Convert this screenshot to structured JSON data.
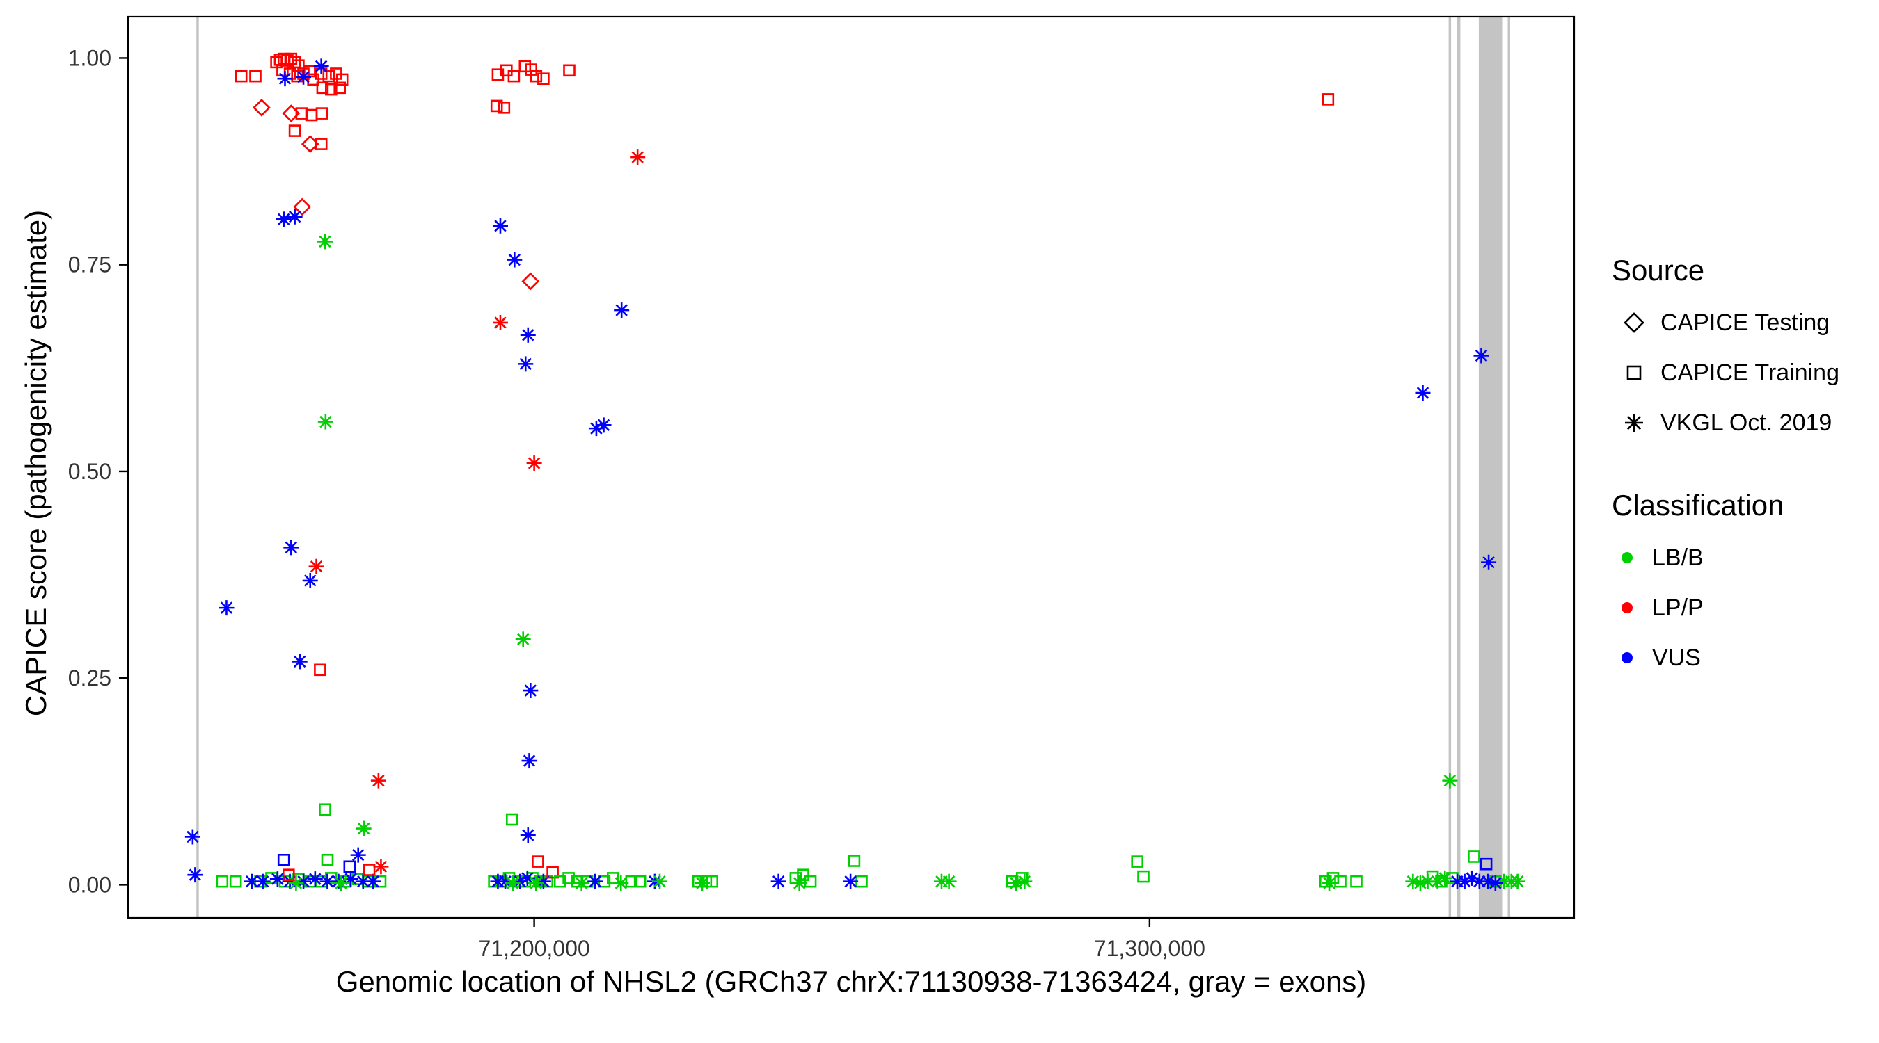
{
  "legend": {
    "source": {
      "title": "Source",
      "items": [
        {
          "shape": "diamond",
          "label": "CAPICE Testing"
        },
        {
          "shape": "square",
          "label": "CAPICE Training"
        },
        {
          "shape": "asterisk",
          "label": "VKGL Oct. 2019"
        }
      ]
    },
    "classification": {
      "title": "Classification",
      "items": [
        {
          "color": "#00d000",
          "label": "LB/B"
        },
        {
          "color": "#ff0000",
          "label": "LP/P"
        },
        {
          "color": "#0000ff",
          "label": "VUS"
        }
      ]
    }
  },
  "chart_data": {
    "type": "scatter",
    "title": "",
    "xlabel": "Genomic location of NHSL2 (GRCh37 chrX:71130938-71363424, gray = exons)",
    "ylabel": "CAPICE score (pathogenicity estimate)",
    "xlim": [
      71134000,
      71369000
    ],
    "ylim": [
      -0.04,
      1.05
    ],
    "grid": false,
    "legend_position": "right",
    "x_ticks": [
      {
        "value": 71200000,
        "label": "71,200,000"
      },
      {
        "value": 71300000,
        "label": "71,300,000"
      }
    ],
    "y_ticks": [
      {
        "value": 0.0,
        "label": "0.00"
      },
      {
        "value": 0.25,
        "label": "0.25"
      },
      {
        "value": 0.5,
        "label": "0.50"
      },
      {
        "value": 0.75,
        "label": "0.75"
      },
      {
        "value": 1.0,
        "label": "1.00"
      }
    ],
    "exon_color": "#c4c4c4",
    "exons": [
      [
        71145100,
        71145500
      ],
      [
        71348600,
        71349000
      ],
      [
        71350000,
        71350500
      ],
      [
        71353500,
        71357300
      ],
      [
        71358200,
        71358600
      ]
    ],
    "class_colors": {
      "B": "#00d000",
      "P": "#ff0000",
      "U": "#0000ff"
    },
    "class_labels": {
      "B": "LB/B",
      "P": "LP/P",
      "U": "VUS"
    },
    "source_labels": {
      "T": "CAPICE Testing",
      "R": "CAPICE Training",
      "V": "VKGL Oct. 2019"
    },
    "source_shapes": {
      "T": "diamond",
      "R": "square",
      "V": "asterisk"
    },
    "point_fields": [
      "position",
      "score",
      "classification",
      "source"
    ],
    "points": [
      [
        71152400,
        0.978,
        "P",
        "R"
      ],
      [
        71154700,
        0.978,
        "P",
        "R"
      ],
      [
        71158100,
        0.995,
        "P",
        "R"
      ],
      [
        71158700,
        0.998,
        "P",
        "R"
      ],
      [
        71159300,
        0.999,
        "P",
        "R"
      ],
      [
        71159900,
        0.997,
        "P",
        "R"
      ],
      [
        71160500,
        0.999,
        "P",
        "R"
      ],
      [
        71161100,
        0.995,
        "P",
        "R"
      ],
      [
        71161700,
        0.991,
        "P",
        "R"
      ],
      [
        71159100,
        0.985,
        "P",
        "R"
      ],
      [
        71160300,
        0.981,
        "P",
        "R"
      ],
      [
        71161500,
        0.978,
        "P",
        "R"
      ],
      [
        71162500,
        0.981,
        "P",
        "R"
      ],
      [
        71163500,
        0.984,
        "P",
        "R"
      ],
      [
        71164100,
        0.974,
        "P",
        "R"
      ],
      [
        71165400,
        0.981,
        "P",
        "R"
      ],
      [
        71166600,
        0.978,
        "P",
        "R"
      ],
      [
        71167800,
        0.981,
        "P",
        "R"
      ],
      [
        71168800,
        0.974,
        "P",
        "R"
      ],
      [
        71165600,
        0.964,
        "P",
        "R"
      ],
      [
        71167000,
        0.962,
        "P",
        "R"
      ],
      [
        71168400,
        0.964,
        "P",
        "R"
      ],
      [
        71162200,
        0.933,
        "P",
        "R"
      ],
      [
        71163800,
        0.931,
        "P",
        "R"
      ],
      [
        71165500,
        0.933,
        "P",
        "R"
      ],
      [
        71161100,
        0.912,
        "P",
        "R"
      ],
      [
        71165400,
        0.896,
        "P",
        "R"
      ],
      [
        71155700,
        0.94,
        "P",
        "T"
      ],
      [
        71160500,
        0.933,
        "P",
        "T"
      ],
      [
        71163600,
        0.896,
        "P",
        "T"
      ],
      [
        71162300,
        0.82,
        "P",
        "T"
      ],
      [
        71165400,
        0.99,
        "U",
        "V"
      ],
      [
        71162500,
        0.977,
        "U",
        "V"
      ],
      [
        71159500,
        0.975,
        "U",
        "V"
      ],
      [
        71159300,
        0.805,
        "U",
        "V"
      ],
      [
        71161100,
        0.808,
        "U",
        "V"
      ],
      [
        71166000,
        0.778,
        "B",
        "V"
      ],
      [
        71166100,
        0.56,
        "B",
        "V"
      ],
      [
        71150000,
        0.335,
        "U",
        "V"
      ],
      [
        71160500,
        0.408,
        "U",
        "V"
      ],
      [
        71161900,
        0.27,
        "U",
        "V"
      ],
      [
        71163600,
        0.368,
        "U",
        "V"
      ],
      [
        71164600,
        0.385,
        "P",
        "V"
      ],
      [
        71174700,
        0.126,
        "P",
        "V"
      ],
      [
        71175100,
        0.022,
        "P",
        "V"
      ],
      [
        71165200,
        0.26,
        "P",
        "R"
      ],
      [
        71144500,
        0.058,
        "U",
        "V"
      ],
      [
        71144900,
        0.012,
        "U",
        "V"
      ],
      [
        71149300,
        0.004,
        "B",
        "R"
      ],
      [
        71151500,
        0.004,
        "B",
        "R"
      ],
      [
        71155500,
        0.004,
        "B",
        "R"
      ],
      [
        71157300,
        0.008,
        "B",
        "R"
      ],
      [
        71159500,
        0.004,
        "B",
        "R"
      ],
      [
        71161700,
        0.007,
        "B",
        "R"
      ],
      [
        71163600,
        0.004,
        "B",
        "R"
      ],
      [
        71165400,
        0.004,
        "B",
        "R"
      ],
      [
        71167000,
        0.008,
        "B",
        "R"
      ],
      [
        71169200,
        0.004,
        "B",
        "R"
      ],
      [
        71171400,
        0.007,
        "B",
        "R"
      ],
      [
        71173000,
        0.004,
        "B",
        "R"
      ],
      [
        71175000,
        0.004,
        "B",
        "R"
      ],
      [
        71166000,
        0.091,
        "B",
        "R"
      ],
      [
        71166400,
        0.03,
        "B",
        "R"
      ],
      [
        71154100,
        0.004,
        "U",
        "V"
      ],
      [
        71155900,
        0.004,
        "U",
        "V"
      ],
      [
        71158300,
        0.007,
        "U",
        "V"
      ],
      [
        71160300,
        0.004,
        "U",
        "V"
      ],
      [
        71162500,
        0.004,
        "U",
        "V"
      ],
      [
        71164400,
        0.007,
        "U",
        "V"
      ],
      [
        71166400,
        0.004,
        "U",
        "V"
      ],
      [
        71168200,
        0.004,
        "U",
        "V"
      ],
      [
        71170200,
        0.007,
        "U",
        "V"
      ],
      [
        71172200,
        0.004,
        "U",
        "V"
      ],
      [
        71173800,
        0.004,
        "U",
        "V"
      ],
      [
        71171400,
        0.036,
        "U",
        "V"
      ],
      [
        71161300,
        0.002,
        "B",
        "V"
      ],
      [
        71168600,
        0.002,
        "B",
        "V"
      ],
      [
        71172300,
        0.068,
        "B",
        "V"
      ],
      [
        71159300,
        0.03,
        "U",
        "R"
      ],
      [
        71170000,
        0.022,
        "U",
        "R"
      ],
      [
        71160100,
        0.012,
        "P",
        "R"
      ],
      [
        71173200,
        0.018,
        "P",
        "R"
      ],
      [
        71194100,
        0.98,
        "P",
        "R"
      ],
      [
        71195500,
        0.985,
        "P",
        "R"
      ],
      [
        71196700,
        0.978,
        "P",
        "R"
      ],
      [
        71198500,
        0.99,
        "P",
        "R"
      ],
      [
        71199500,
        0.986,
        "P",
        "R"
      ],
      [
        71200300,
        0.978,
        "P",
        "R"
      ],
      [
        71201500,
        0.975,
        "P",
        "R"
      ],
      [
        71205700,
        0.985,
        "P",
        "R"
      ],
      [
        71193900,
        0.942,
        "P",
        "R"
      ],
      [
        71195100,
        0.94,
        "P",
        "R"
      ],
      [
        71199400,
        0.73,
        "P",
        "T"
      ],
      [
        71194500,
        0.68,
        "P",
        "V"
      ],
      [
        71200000,
        0.51,
        "P",
        "V"
      ],
      [
        71216800,
        0.88,
        "P",
        "V"
      ],
      [
        71194500,
        0.797,
        "U",
        "V"
      ],
      [
        71196800,
        0.756,
        "U",
        "V"
      ],
      [
        71199000,
        0.665,
        "U",
        "V"
      ],
      [
        71198600,
        0.63,
        "U",
        "V"
      ],
      [
        71214200,
        0.695,
        "U",
        "V"
      ],
      [
        71210100,
        0.552,
        "U",
        "V"
      ],
      [
        71211300,
        0.556,
        "U",
        "V"
      ],
      [
        71199400,
        0.235,
        "U",
        "V"
      ],
      [
        71199200,
        0.15,
        "U",
        "V"
      ],
      [
        71199000,
        0.06,
        "U",
        "V"
      ],
      [
        71198200,
        0.297,
        "B",
        "V"
      ],
      [
        71196400,
        0.079,
        "B",
        "R"
      ],
      [
        71200600,
        0.028,
        "P",
        "R"
      ],
      [
        71193500,
        0.004,
        "B",
        "R"
      ],
      [
        71194700,
        0.004,
        "B",
        "R"
      ],
      [
        71195900,
        0.008,
        "B",
        "R"
      ],
      [
        71197300,
        0.004,
        "B",
        "R"
      ],
      [
        71198500,
        0.004,
        "B",
        "R"
      ],
      [
        71199700,
        0.008,
        "B",
        "R"
      ],
      [
        71200900,
        0.004,
        "B",
        "R"
      ],
      [
        71202100,
        0.004,
        "B",
        "R"
      ],
      [
        71194100,
        0.004,
        "U",
        "V"
      ],
      [
        71195300,
        0.004,
        "U",
        "V"
      ],
      [
        71197700,
        0.004,
        "U",
        "V"
      ],
      [
        71198900,
        0.008,
        "U",
        "V"
      ],
      [
        71201500,
        0.004,
        "U",
        "V"
      ],
      [
        71196500,
        0.002,
        "B",
        "V"
      ],
      [
        71200300,
        0.002,
        "B",
        "V"
      ],
      [
        71203000,
        0.015,
        "P",
        "R"
      ],
      [
        71204200,
        0.004,
        "B",
        "R"
      ],
      [
        71205600,
        0.008,
        "B",
        "R"
      ],
      [
        71207000,
        0.004,
        "B",
        "R"
      ],
      [
        71208600,
        0.004,
        "B",
        "R"
      ],
      [
        71211400,
        0.004,
        "B",
        "R"
      ],
      [
        71212800,
        0.008,
        "B",
        "R"
      ],
      [
        71215800,
        0.004,
        "B",
        "R"
      ],
      [
        71217200,
        0.004,
        "B",
        "R"
      ],
      [
        71209900,
        0.004,
        "U",
        "V"
      ],
      [
        71219600,
        0.004,
        "U",
        "V"
      ],
      [
        71207700,
        0.002,
        "B",
        "V"
      ],
      [
        71214100,
        0.002,
        "B",
        "V"
      ],
      [
        71220400,
        0.004,
        "B",
        "V"
      ],
      [
        71226700,
        0.004,
        "B",
        "R"
      ],
      [
        71227900,
        0.004,
        "B",
        "R"
      ],
      [
        71228900,
        0.004,
        "B",
        "R"
      ],
      [
        71227300,
        0.002,
        "B",
        "V"
      ],
      [
        71239700,
        0.004,
        "U",
        "V"
      ],
      [
        71242500,
        0.008,
        "B",
        "R"
      ],
      [
        71243700,
        0.012,
        "B",
        "R"
      ],
      [
        71244900,
        0.004,
        "B",
        "R"
      ],
      [
        71243100,
        0.002,
        "B",
        "V"
      ],
      [
        71252000,
        0.029,
        "B",
        "R"
      ],
      [
        71253200,
        0.004,
        "B",
        "R"
      ],
      [
        71251400,
        0.004,
        "U",
        "V"
      ],
      [
        71266200,
        0.004,
        "B",
        "V"
      ],
      [
        71267400,
        0.004,
        "B",
        "V"
      ],
      [
        71277700,
        0.004,
        "B",
        "R"
      ],
      [
        71279300,
        0.008,
        "B",
        "R"
      ],
      [
        71278300,
        0.002,
        "B",
        "V"
      ],
      [
        71279700,
        0.004,
        "B",
        "V"
      ],
      [
        71298000,
        0.028,
        "B",
        "R"
      ],
      [
        71299000,
        0.01,
        "B",
        "R"
      ],
      [
        71329000,
        0.95,
        "P",
        "R"
      ],
      [
        71328600,
        0.004,
        "B",
        "R"
      ],
      [
        71329800,
        0.008,
        "B",
        "R"
      ],
      [
        71331000,
        0.004,
        "B",
        "R"
      ],
      [
        71333600,
        0.004,
        "B",
        "R"
      ],
      [
        71329200,
        0.002,
        "B",
        "V"
      ],
      [
        71344400,
        0.595,
        "U",
        "V"
      ],
      [
        71353900,
        0.64,
        "U",
        "V"
      ],
      [
        71355100,
        0.39,
        "U",
        "V"
      ],
      [
        71348800,
        0.126,
        "B",
        "V"
      ],
      [
        71352700,
        0.034,
        "B",
        "R"
      ],
      [
        71354700,
        0.025,
        "U",
        "R"
      ],
      [
        71342800,
        0.004,
        "B",
        "V"
      ],
      [
        71344000,
        0.002,
        "B",
        "V"
      ],
      [
        71345200,
        0.004,
        "B",
        "V"
      ],
      [
        71346800,
        0.004,
        "B",
        "V"
      ],
      [
        71348000,
        0.008,
        "B",
        "V"
      ],
      [
        71357600,
        0.004,
        "B",
        "V"
      ],
      [
        71358800,
        0.004,
        "B",
        "V"
      ],
      [
        71359800,
        0.004,
        "B",
        "V"
      ],
      [
        71346000,
        0.01,
        "B",
        "R"
      ],
      [
        71347400,
        0.004,
        "B",
        "R"
      ],
      [
        71349200,
        0.008,
        "B",
        "R"
      ],
      [
        71356200,
        0.004,
        "B",
        "R"
      ],
      [
        71350000,
        0.004,
        "U",
        "V"
      ],
      [
        71351200,
        0.004,
        "U",
        "V"
      ],
      [
        71352400,
        0.008,
        "U",
        "V"
      ],
      [
        71353600,
        0.004,
        "U",
        "V"
      ],
      [
        71355000,
        0.004,
        "U",
        "V"
      ],
      [
        71356200,
        0.002,
        "U",
        "V"
      ]
    ]
  }
}
